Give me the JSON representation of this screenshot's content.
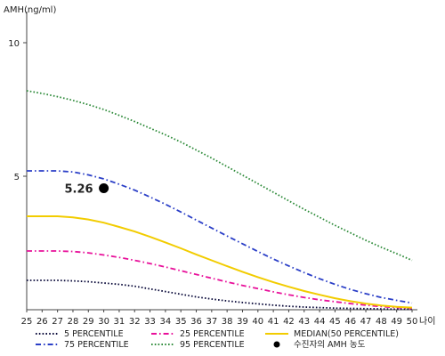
{
  "chart_data": {
    "type": "line",
    "ylabel": "AMH(ng/ml)",
    "xlabel": "나이",
    "xlim": [
      25,
      50
    ],
    "ylim": [
      0,
      11
    ],
    "x_ticks": [
      25,
      26,
      27,
      28,
      29,
      30,
      31,
      32,
      33,
      34,
      35,
      36,
      37,
      38,
      39,
      40,
      41,
      42,
      43,
      44,
      45,
      46,
      47,
      48,
      49,
      50
    ],
    "y_ticks": [
      5,
      10
    ],
    "x": [
      25,
      26,
      27,
      28,
      29,
      30,
      31,
      32,
      33,
      34,
      35,
      36,
      37,
      38,
      39,
      40,
      41,
      42,
      43,
      44,
      45,
      46,
      47,
      48,
      49,
      50
    ],
    "series": [
      {
        "name": "5 PERCENTILE",
        "color": "#0a0a3a",
        "dash": "dotted",
        "values": [
          1.1,
          1.1,
          1.1,
          1.08,
          1.05,
          1.0,
          0.95,
          0.88,
          0.78,
          0.68,
          0.58,
          0.48,
          0.4,
          0.33,
          0.27,
          0.22,
          0.17,
          0.13,
          0.1,
          0.08,
          0.06,
          0.05,
          0.04,
          0.03,
          0.02,
          0.02
        ]
      },
      {
        "name": "25 PERCENTILE",
        "color": "#e8109a",
        "dash": "dashdot",
        "values": [
          2.2,
          2.2,
          2.2,
          2.18,
          2.13,
          2.05,
          1.96,
          1.85,
          1.73,
          1.6,
          1.46,
          1.32,
          1.18,
          1.04,
          0.91,
          0.79,
          0.67,
          0.56,
          0.46,
          0.37,
          0.3,
          0.23,
          0.17,
          0.12,
          0.08,
          0.05
        ]
      },
      {
        "name": "MEDIAN(50 PERCENTILE)",
        "color": "#f2cc00",
        "dash": "solid",
        "values": [
          3.5,
          3.5,
          3.5,
          3.46,
          3.38,
          3.26,
          3.1,
          2.93,
          2.73,
          2.52,
          2.3,
          2.07,
          1.85,
          1.63,
          1.42,
          1.22,
          1.03,
          0.86,
          0.7,
          0.56,
          0.43,
          0.32,
          0.23,
          0.16,
          0.11,
          0.08
        ]
      },
      {
        "name": "75 PERCENTILE",
        "color": "#2b3fc7",
        "dash": "dashdot",
        "values": [
          5.2,
          5.2,
          5.2,
          5.16,
          5.05,
          4.9,
          4.7,
          4.48,
          4.22,
          3.95,
          3.66,
          3.36,
          3.06,
          2.76,
          2.47,
          2.18,
          1.9,
          1.64,
          1.39,
          1.16,
          0.95,
          0.76,
          0.6,
          0.46,
          0.35,
          0.25
        ]
      },
      {
        "name": "95 PERCENTILE",
        "color": "#2e8b3a",
        "dash": "dotted",
        "values": [
          8.2,
          8.1,
          7.98,
          7.84,
          7.68,
          7.5,
          7.28,
          7.05,
          6.8,
          6.55,
          6.28,
          5.98,
          5.68,
          5.36,
          5.04,
          4.72,
          4.4,
          4.08,
          3.76,
          3.46,
          3.16,
          2.88,
          2.6,
          2.34,
          2.1,
          1.85
        ]
      }
    ],
    "annotations": [
      {
        "label": "5.26",
        "x": 30,
        "y": 4.55,
        "marker": "filled-circle"
      }
    ],
    "extra_legend": [
      {
        "label": "수진자의 AMH 농도",
        "marker": "filled-circle",
        "color": "#000000"
      }
    ],
    "legend_position": "bottom",
    "grid": false
  }
}
